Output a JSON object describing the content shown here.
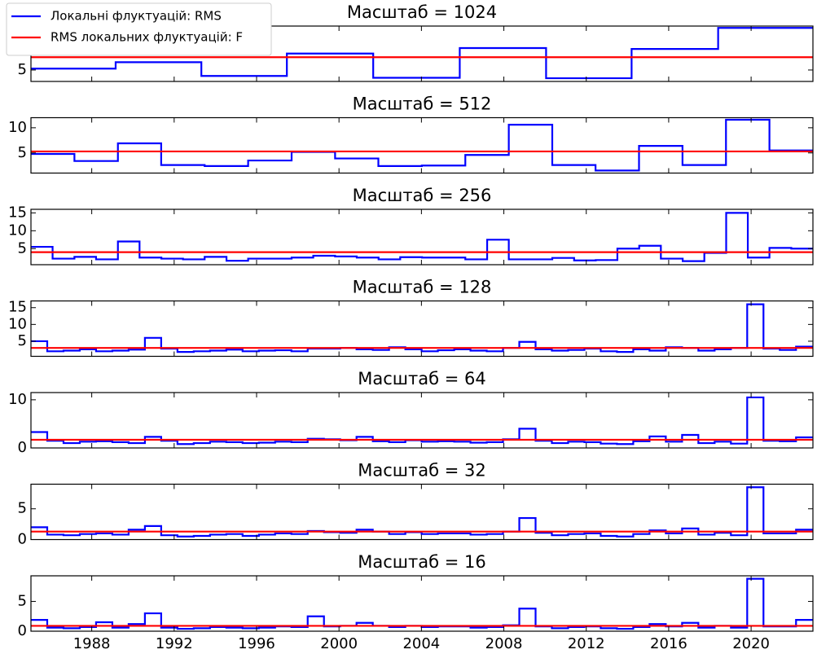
{
  "chart_data": [
    {
      "type": "step",
      "title": "Масштаб = 1024",
      "legend": "upper left",
      "x": [
        1985.05,
        1989.16,
        1993.32,
        1997.47,
        2001.66,
        2005.86,
        2010.05,
        2014.2,
        2018.4
      ],
      "series": [
        {
          "name": "Локальні флуктуацій: RMS",
          "color": "#0000ff",
          "values": [
            5.3,
            6.7,
            3.7,
            8.6,
            3.3,
            9.8,
            3.2,
            9.6,
            14.2
          ]
        },
        {
          "name": "RMS локальних флуктуацій: F",
          "color": "#ff0000",
          "value": 7.8
        }
      ],
      "xlim": [
        1985.05,
        2023.0
      ],
      "xticks": [
        1988,
        1992,
        1996,
        2000,
        2004,
        2008,
        2012,
        2016,
        2020
      ],
      "ylim": [
        2.5,
        14.6
      ],
      "yticks": [
        5
      ]
    },
    {
      "type": "step",
      "title": "Масштаб = 512",
      "x": [
        1985.05,
        1987.16,
        1989.27,
        1991.37,
        1993.48,
        1995.59,
        1997.7,
        1999.81,
        2001.91,
        2004.02,
        2006.13,
        2008.24,
        2010.35,
        2012.45,
        2014.56,
        2016.67,
        2018.78,
        2020.89
      ],
      "series": [
        {
          "color": "#0000ff",
          "values": [
            4.8,
            3.4,
            6.9,
            2.6,
            2.4,
            3.5,
            5.2,
            3.9,
            2.4,
            2.5,
            4.6,
            10.6,
            2.6,
            1.5,
            6.4,
            2.6,
            11.6,
            5.5
          ]
        },
        {
          "color": "#ff0000",
          "value": 5.3
        }
      ],
      "xlim": [
        1985.05,
        2023.0
      ],
      "xticks": [
        1988,
        1992,
        1996,
        2000,
        2004,
        2008,
        2012,
        2016,
        2020
      ],
      "ylim": [
        1,
        12
      ],
      "yticks": [
        5,
        10
      ]
    },
    {
      "type": "step",
      "title": "Масштаб = 256",
      "x": [
        1985.05,
        1986.1,
        1987.16,
        1988.21,
        1989.27,
        1990.32,
        1991.38,
        1992.43,
        1993.48,
        1994.54,
        1995.59,
        1996.65,
        1997.7,
        1998.75,
        1999.81,
        2000.86,
        2001.92,
        2002.97,
        2004.03,
        2005.08,
        2006.13,
        2007.19,
        2008.24,
        2009.3,
        2010.35,
        2011.41,
        2012.46,
        2013.51,
        2014.57,
        2015.62,
        2016.68,
        2017.73,
        2018.79,
        2019.84,
        2020.89,
        2021.95
      ],
      "series": [
        {
          "color": "#0000ff",
          "values": [
            5.5,
            2.2,
            2.7,
            2.0,
            7.0,
            2.5,
            2.2,
            2.0,
            2.7,
            1.6,
            2.2,
            2.2,
            2.5,
            3.0,
            2.8,
            2.5,
            2.0,
            2.6,
            2.5,
            2.5,
            2.0,
            7.5,
            2.0,
            2.0,
            2.4,
            1.7,
            1.8,
            5.0,
            5.8,
            2.2,
            1.5,
            3.8,
            15,
            2.5,
            5.2,
            5.0
          ]
        },
        {
          "color": "#ff0000",
          "value": 4.0
        }
      ],
      "xlim": [
        1985.05,
        2023.0
      ],
      "xticks": [
        1988,
        1992,
        1996,
        2000,
        2004,
        2008,
        2012,
        2016,
        2020
      ],
      "ylim": [
        0.5,
        16
      ],
      "yticks": [
        5,
        10,
        15
      ]
    },
    {
      "type": "step",
      "title": "Масштаб = 128",
      "x": [
        1985.05,
        1985.84,
        1986.63,
        1987.42,
        1988.21,
        1989.0,
        1989.79,
        1990.58,
        1991.37,
        1992.16,
        1992.95,
        1993.74,
        1994.53,
        1995.32,
        1996.11,
        1996.9,
        1997.69,
        1998.48,
        1999.27,
        2000.06,
        2000.85,
        2001.64,
        2002.43,
        2003.22,
        2004.01,
        2004.8,
        2005.59,
        2006.38,
        2007.17,
        2007.96,
        2008.75,
        2009.54,
        2010.33,
        2011.12,
        2011.91,
        2012.7,
        2013.49,
        2014.28,
        2015.07,
        2015.86,
        2016.65,
        2017.44,
        2018.23,
        2019.02,
        2019.81,
        2020.6,
        2021.39,
        2022.18
      ],
      "series": [
        {
          "color": "#0000ff",
          "values": [
            5.0,
            2.0,
            2.2,
            2.6,
            2.0,
            2.2,
            2.5,
            6.0,
            2.8,
            1.8,
            2.0,
            2.2,
            2.5,
            2.0,
            2.2,
            2.3,
            2.0,
            2.8,
            2.8,
            3.0,
            2.6,
            2.4,
            3.2,
            2.6,
            2.0,
            2.3,
            2.6,
            2.2,
            2.0,
            3.0,
            4.8,
            2.6,
            2.2,
            2.4,
            2.8,
            2.0,
            1.8,
            2.6,
            2.2,
            3.2,
            3.0,
            2.2,
            2.6,
            3.0,
            16,
            2.8,
            2.4,
            3.4
          ]
        },
        {
          "color": "#ff0000",
          "value": 3.0
        }
      ],
      "xlim": [
        1985.05,
        2023.0
      ],
      "xticks": [
        1988,
        1992,
        1996,
        2000,
        2004,
        2008,
        2012,
        2016,
        2020
      ],
      "ylim": [
        0.5,
        17
      ],
      "yticks": [
        5,
        10,
        15
      ]
    },
    {
      "type": "step",
      "title": "Масштаб = 64",
      "x": [
        1985.05,
        1985.84,
        1986.63,
        1987.42,
        1988.21,
        1989.0,
        1989.79,
        1990.58,
        1991.37,
        1992.16,
        1992.95,
        1993.74,
        1994.53,
        1995.32,
        1996.11,
        1996.9,
        1997.69,
        1998.48,
        1999.27,
        2000.06,
        2000.85,
        2001.64,
        2002.43,
        2003.22,
        2004.01,
        2004.8,
        2005.59,
        2006.38,
        2007.17,
        2007.96,
        2008.75,
        2009.54,
        2010.33,
        2011.12,
        2011.91,
        2012.7,
        2013.49,
        2014.28,
        2015.07,
        2015.86,
        2016.65,
        2017.44,
        2018.23,
        2019.02,
        2019.81,
        2020.6,
        2021.39,
        2022.18
      ],
      "series": [
        {
          "color": "#0000ff",
          "values": [
            3.3,
            1.5,
            1.0,
            1.3,
            1.4,
            1.2,
            1.0,
            2.3,
            1.5,
            0.8,
            1.0,
            1.3,
            1.2,
            1.0,
            1.1,
            1.3,
            1.2,
            1.9,
            1.8,
            1.6,
            2.3,
            1.4,
            1.2,
            1.6,
            1.3,
            1.4,
            1.3,
            1.1,
            1.2,
            1.8,
            4.0,
            1.5,
            1.0,
            1.3,
            1.2,
            0.9,
            0.8,
            1.4,
            2.4,
            1.3,
            2.7,
            1.0,
            1.3,
            0.9,
            10.5,
            1.5,
            1.4,
            2.2
          ]
        },
        {
          "color": "#ff0000",
          "value": 1.7
        }
      ],
      "xlim": [
        1985.05,
        2023.0
      ],
      "xticks": [
        1988,
        1992,
        1996,
        2000,
        2004,
        2008,
        2012,
        2016,
        2020
      ],
      "ylim": [
        0,
        11.5
      ],
      "yticks": [
        0,
        10
      ]
    },
    {
      "type": "step",
      "title": "Масштаб = 32",
      "x": [
        1985.05,
        1985.84,
        1986.63,
        1987.42,
        1988.21,
        1989.0,
        1989.79,
        1990.58,
        1991.37,
        1992.16,
        1992.95,
        1993.74,
        1994.53,
        1995.32,
        1996.11,
        1996.9,
        1997.69,
        1998.48,
        1999.27,
        2000.06,
        2000.85,
        2001.64,
        2002.43,
        2003.22,
        2004.01,
        2004.8,
        2005.59,
        2006.38,
        2007.17,
        2007.96,
        2008.75,
        2009.54,
        2010.33,
        2011.12,
        2011.91,
        2012.7,
        2013.49,
        2014.28,
        2015.07,
        2015.86,
        2016.65,
        2017.44,
        2018.23,
        2019.02,
        2019.81,
        2020.6,
        2021.39,
        2022.18
      ],
      "series": [
        {
          "color": "#0000ff",
          "values": [
            2.0,
            0.8,
            0.7,
            0.9,
            1.0,
            0.8,
            1.6,
            2.2,
            0.7,
            0.5,
            0.6,
            0.8,
            0.9,
            0.6,
            0.8,
            1.0,
            0.9,
            1.4,
            1.2,
            1.1,
            1.6,
            1.3,
            0.9,
            1.2,
            0.9,
            1.0,
            1.0,
            0.8,
            0.9,
            1.3,
            3.5,
            1.1,
            0.7,
            0.9,
            1.0,
            0.6,
            0.5,
            0.9,
            1.5,
            1.0,
            1.8,
            0.8,
            1.1,
            0.7,
            8.5,
            1.0,
            1.0,
            1.6
          ]
        },
        {
          "color": "#ff0000",
          "value": 1.3
        }
      ],
      "xlim": [
        1985.05,
        2023.0
      ],
      "xticks": [
        1988,
        1992,
        1996,
        2000,
        2004,
        2008,
        2012,
        2016,
        2020
      ],
      "ylim": [
        0,
        9
      ],
      "yticks": [
        0,
        5
      ]
    },
    {
      "type": "step",
      "title": "Масштаб = 16",
      "x": [
        1985.05,
        1985.84,
        1986.63,
        1987.42,
        1988.21,
        1989.0,
        1989.79,
        1990.58,
        1991.37,
        1992.16,
        1992.95,
        1993.74,
        1994.53,
        1995.32,
        1996.11,
        1996.9,
        1997.69,
        1998.48,
        1999.27,
        2000.06,
        2000.85,
        2001.64,
        2002.43,
        2003.22,
        2004.01,
        2004.8,
        2005.59,
        2006.38,
        2007.17,
        2007.96,
        2008.75,
        2009.54,
        2010.33,
        2011.12,
        2011.91,
        2012.7,
        2013.49,
        2014.28,
        2015.07,
        2015.86,
        2016.65,
        2017.44,
        2018.23,
        2019.02,
        2019.81,
        2020.6,
        2021.39,
        2022.18
      ],
      "series": [
        {
          "color": "#0000ff",
          "values": [
            1.9,
            0.6,
            0.5,
            0.7,
            1.5,
            0.6,
            1.2,
            3.0,
            0.6,
            0.4,
            0.5,
            0.7,
            0.6,
            0.5,
            0.6,
            0.8,
            0.7,
            2.5,
            0.8,
            0.9,
            1.4,
            0.9,
            0.7,
            0.9,
            0.7,
            0.8,
            0.8,
            0.6,
            0.7,
            1.0,
            3.8,
            0.8,
            0.5,
            0.7,
            0.8,
            0.5,
            0.4,
            0.7,
            1.2,
            0.8,
            1.4,
            0.6,
            0.9,
            0.6,
            8.8,
            0.8,
            0.8,
            1.9
          ]
        },
        {
          "color": "#ff0000",
          "value": 0.9
        }
      ],
      "xlim": [
        1985.05,
        2023.0
      ],
      "xticks": [
        1988,
        1992,
        1996,
        2000,
        2004,
        2008,
        2012,
        2016,
        2020
      ],
      "ylim": [
        0,
        9.3
      ],
      "yticks": [
        0,
        5
      ]
    }
  ]
}
